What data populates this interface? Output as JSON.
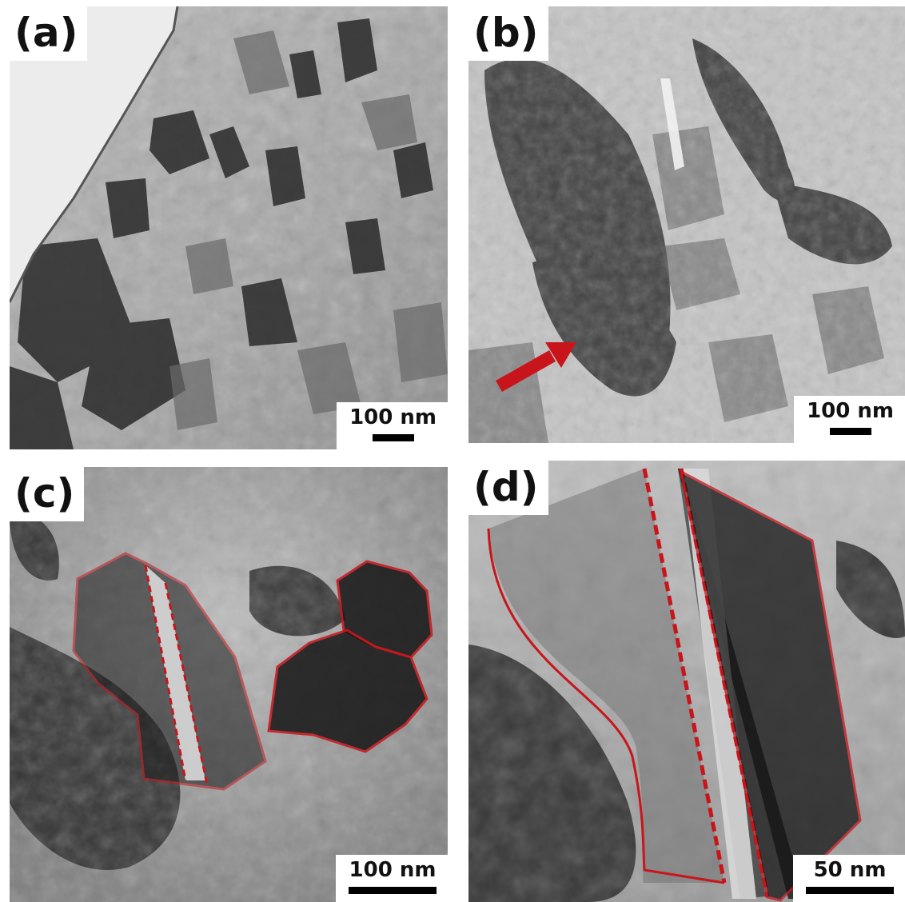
{
  "panels": [
    {
      "label": "(a)",
      "scale": "100 nm"
    },
    {
      "label": "(b)",
      "scale": "100 nm"
    },
    {
      "label": "(c)",
      "scale": "100 nm"
    },
    {
      "label": "(d)",
      "scale": "50 nm"
    }
  ],
  "colors": {
    "annotation": "#c8151b",
    "scale_bar": "#000000",
    "label_background": "#ffffff"
  },
  "icons": {
    "arrow": "red-arrow-icon"
  }
}
